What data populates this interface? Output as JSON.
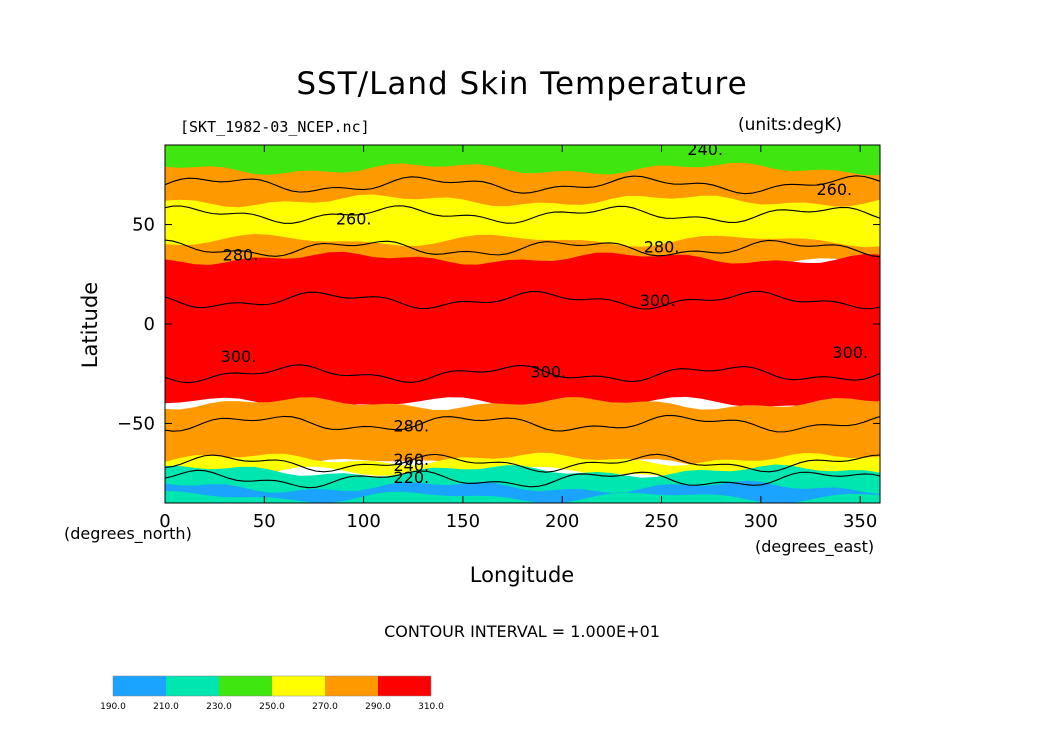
{
  "title": "SST/Land Skin Temperature",
  "file_label": "[SKT_1982-03_NCEP.nc]",
  "units_label": "(units:degK)",
  "contour_interval_label": "CONTOUR INTERVAL = 1.000E+01",
  "chart_data": {
    "type": "heatmap",
    "title": "SST/Land Skin Temperature",
    "xlabel": "Longitude",
    "ylabel": "Latitude",
    "x_units": "(degrees_east)",
    "y_units": "(degrees_north)",
    "xlim": [
      0,
      360
    ],
    "ylim": [
      -90,
      90
    ],
    "x_ticks": [
      0,
      50,
      100,
      150,
      200,
      250,
      300,
      350
    ],
    "y_ticks": [
      -50,
      0,
      50
    ],
    "contour_labels": [
      {
        "text": "240.",
        "lon": 272,
        "lat": 88
      },
      {
        "text": "260.",
        "lon": 337,
        "lat": 68
      },
      {
        "text": "260.",
        "lon": 95,
        "lat": 53
      },
      {
        "text": "280.",
        "lon": 38,
        "lat": 35
      },
      {
        "text": "280.",
        "lon": 250,
        "lat": 39
      },
      {
        "text": "300.",
        "lon": 248,
        "lat": 12
      },
      {
        "text": "300.",
        "lon": 37,
        "lat": -16
      },
      {
        "text": "300.",
        "lon": 193,
        "lat": -24
      },
      {
        "text": "300.",
        "lon": 345,
        "lat": -14
      },
      {
        "text": "280.",
        "lon": 124,
        "lat": -51
      },
      {
        "text": "260.",
        "lon": 124,
        "lat": -68
      },
      {
        "text": "240.",
        "lon": 124,
        "lat": -71
      },
      {
        "text": "220.",
        "lon": 124,
        "lat": -77
      }
    ],
    "legend": {
      "placement": "bottom-left",
      "levels": [
        "190.0",
        "210.0",
        "230.0",
        "250.0",
        "270.0",
        "290.0",
        "310.0"
      ],
      "colors": [
        "#1aa3ff",
        "#00e6b0",
        "#40e610",
        "#ffff00",
        "#ff9900",
        "#ff0000"
      ]
    },
    "zones": [
      {
        "lat_min": 37,
        "lat_max": 90,
        "color": "#40e610"
      },
      {
        "lat_min": 30,
        "lat_max": 78,
        "color": "#ff9900"
      },
      {
        "lat_min": 42,
        "lat_max": 62,
        "color": "#ffff00"
      },
      {
        "lat_min": -40,
        "lat_max": 33,
        "color": "#ff0000"
      },
      {
        "lat_min": -70,
        "lat_max": -40,
        "color": "#ff9900"
      },
      {
        "lat_min": -75,
        "lat_max": -68,
        "color": "#ffff00"
      },
      {
        "lat_min": -90,
        "lat_max": -74,
        "color": "#00e6b0"
      },
      {
        "lat_min": -87,
        "lat_max": -82,
        "color": "#1aa3ff"
      }
    ]
  }
}
